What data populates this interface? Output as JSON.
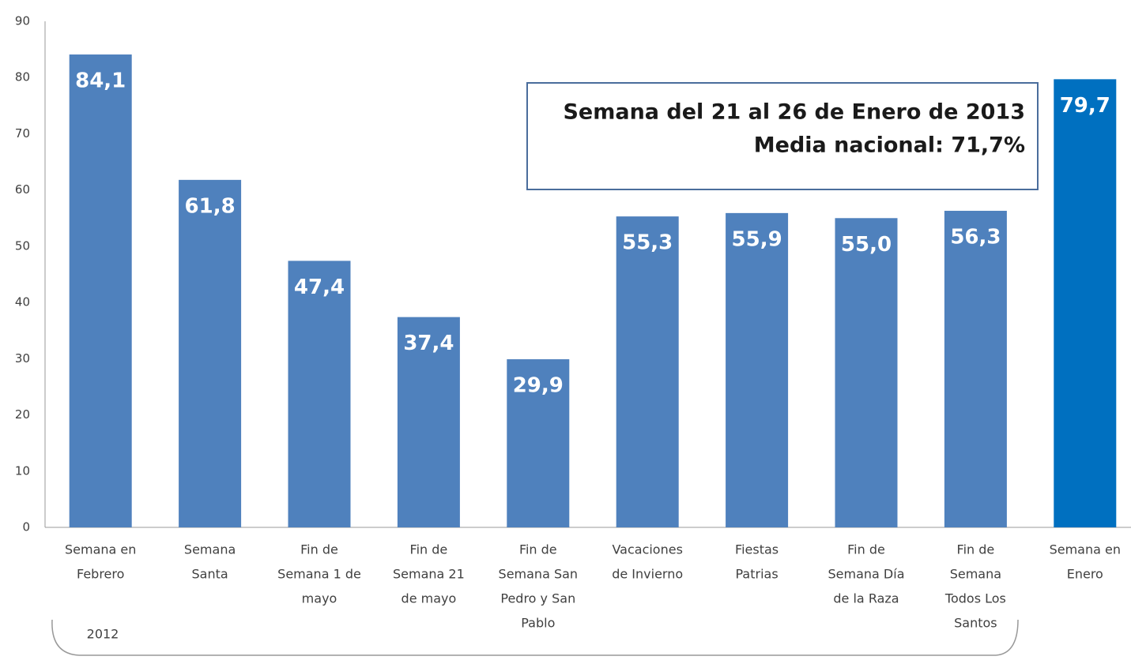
{
  "chart_data": {
    "type": "bar",
    "categories": [
      [
        "Semana en",
        "Febrero"
      ],
      [
        "Semana",
        "Santa"
      ],
      [
        "Fin de",
        "Semana 1 de",
        "mayo"
      ],
      [
        "Fin de",
        "Semana 21",
        "de mayo"
      ],
      [
        "Fin de",
        "Semana San",
        "Pedro y  San",
        "Pablo"
      ],
      [
        "Vacaciones",
        "de Invierno"
      ],
      [
        "Fiestas",
        "Patrias"
      ],
      [
        "Fin de",
        "Semana Día",
        "de la Raza"
      ],
      [
        "Fin de",
        "Semana",
        "Todos Los",
        "Santos"
      ],
      [
        "Semana en",
        "Enero"
      ]
    ],
    "values": [
      84.1,
      61.8,
      47.4,
      37.4,
      29.9,
      55.3,
      55.9,
      55.0,
      56.3,
      79.7
    ],
    "value_labels": [
      "84,1",
      "61,8",
      "47,4",
      "37,4",
      "29,9",
      "55,3",
      "55,9",
      "55,0",
      "56,3",
      "79,7"
    ],
    "colors": [
      "#4f81bd",
      "#4f81bd",
      "#4f81bd",
      "#4f81bd",
      "#4f81bd",
      "#4f81bd",
      "#4f81bd",
      "#4f81bd",
      "#4f81bd",
      "#0070c0"
    ],
    "ylim": [
      0,
      90
    ],
    "yticks": [
      0,
      10,
      20,
      30,
      40,
      50,
      60,
      70,
      80,
      90
    ],
    "grid": false,
    "annotation_lines": [
      "Semana del 21 al 26 de Enero de 2013",
      "Media nacional: 71,7%"
    ],
    "group_label": "2012"
  }
}
